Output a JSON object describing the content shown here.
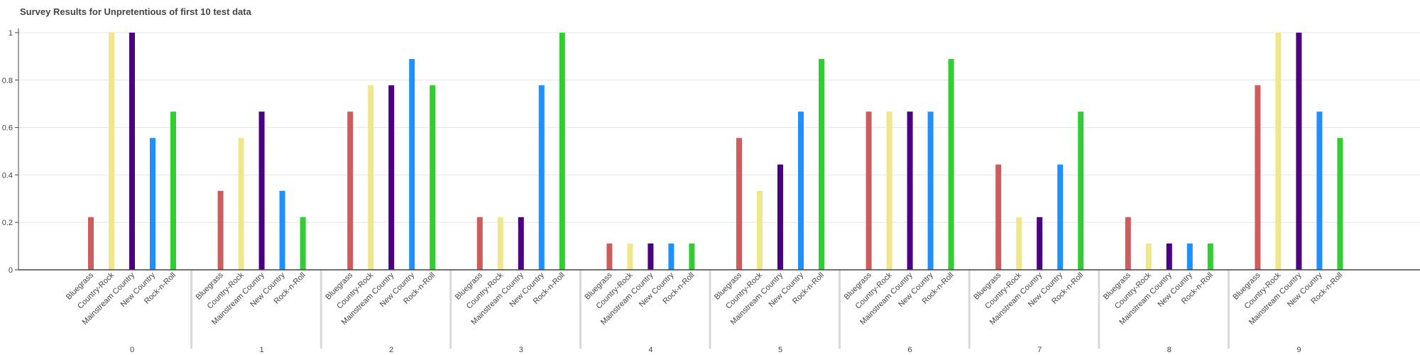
{
  "chart_data": {
    "type": "bar",
    "title": "Survey Results for Unpretentious of first 10 test data",
    "groups": [
      "0",
      "1",
      "2",
      "3",
      "4",
      "5",
      "6",
      "7",
      "8",
      "9"
    ],
    "categories": [
      "Bluegrass",
      "Country-Rock",
      "Mainstream Country",
      "New Country",
      "Rock-n-Roll"
    ],
    "colors": [
      "#cd5c5c",
      "#f0e68c",
      "#4b0082",
      "#1e90ff",
      "#32cd32"
    ],
    "yticks": [
      "0",
      "0.2",
      "0.4",
      "0.6",
      "0.8",
      "1"
    ],
    "ylim": [
      0,
      1
    ],
    "grid": true,
    "values": [
      [
        0.222,
        1.0,
        1.0,
        0.556,
        0.667
      ],
      [
        0.333,
        0.556,
        0.667,
        0.333,
        0.222
      ],
      [
        0.667,
        0.778,
        0.778,
        0.889,
        0.778
      ],
      [
        0.222,
        0.222,
        0.222,
        0.778,
        1.0
      ],
      [
        0.111,
        0.111,
        0.111,
        0.111,
        0.111
      ],
      [
        0.556,
        0.333,
        0.444,
        0.667,
        0.889
      ],
      [
        0.667,
        0.667,
        0.667,
        0.667,
        0.889
      ],
      [
        0.444,
        0.222,
        0.222,
        0.444,
        0.667
      ],
      [
        0.222,
        0.111,
        0.111,
        0.111,
        0.111
      ],
      [
        0.778,
        1.0,
        1.0,
        0.667,
        0.556
      ]
    ]
  }
}
